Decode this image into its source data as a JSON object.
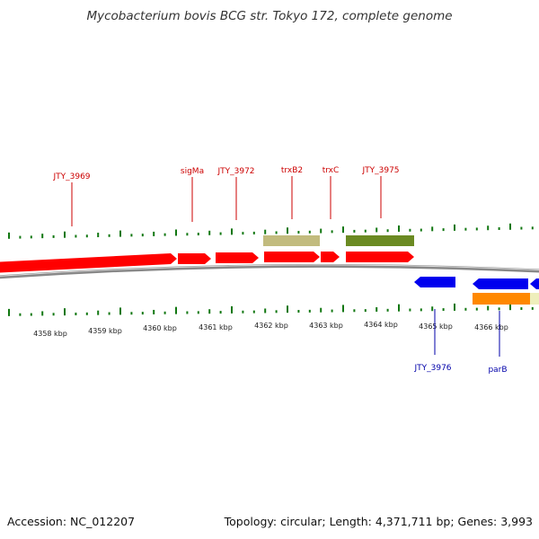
{
  "title": "Mycobacterium bovis BCG str. Tokyo 172, complete genome",
  "footer": {
    "accession": "Accession: NC_012207",
    "summary": "Topology: circular; Length: 4,371,711 bp; Genes: 3,993"
  },
  "colors": {
    "forward_gene": "#ff0000",
    "reverse_gene": "#0000ee",
    "forward_label": "#cc0000",
    "reverse_label": "#0000aa",
    "tick": "#117711",
    "backbone": "#888888",
    "feature_tan": "#c2bb7e",
    "feature_olive": "#6b8a22",
    "feature_orange": "#ff8800",
    "feature_cream": "#eeeebb"
  },
  "scale": {
    "unit": "kbp",
    "labels": [
      "4358 kbp",
      "4359 kbp",
      "4360 kbp",
      "4361 kbp",
      "4362 kbp",
      "4363 kbp",
      "4364 kbp",
      "4365 kbp",
      "4366 kbp"
    ]
  },
  "genes_forward": [
    {
      "name": "JTY_3969",
      "labeled": true
    },
    {
      "name": "sigMa",
      "labeled": true
    },
    {
      "name": "JTY_3972",
      "labeled": true
    },
    {
      "name": "trxB2",
      "labeled": true
    },
    {
      "name": "trxC",
      "labeled": true
    },
    {
      "name": "JTY_3975",
      "labeled": true
    }
  ],
  "genes_reverse": [
    {
      "name": "JTY_3976",
      "labeled": true
    },
    {
      "name": "parB",
      "labeled": true
    },
    {
      "name": "",
      "labeled": false
    }
  ]
}
